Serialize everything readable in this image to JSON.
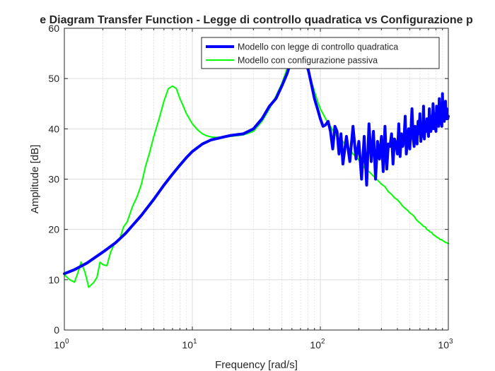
{
  "chart_data": {
    "type": "line",
    "title": "e Diagram Transfer Function - Legge di controllo quadratica vs Configurazione p",
    "xlabel": "Frequency [rad/s]",
    "ylabel": "Amplitude [dB]",
    "xscale": "log",
    "xlim": [
      1,
      1000
    ],
    "ylim": [
      0,
      60
    ],
    "grid": true,
    "legend_position": "top-right",
    "x_tick_labels": [
      {
        "base": "10",
        "exp": "0"
      },
      {
        "base": "10",
        "exp": "1"
      },
      {
        "base": "10",
        "exp": "2"
      },
      {
        "base": "10",
        "exp": "3"
      }
    ],
    "y_ticks": [
      0,
      10,
      20,
      30,
      40,
      50,
      60
    ],
    "series": [
      {
        "name": "Modello con legge di controllo quadratica",
        "color": "#0000ff",
        "width": 4,
        "x": [
          1.0,
          1.2,
          1.5,
          2.0,
          2.5,
          3.0,
          4.0,
          5.0,
          6.0,
          7.0,
          8.0,
          9.0,
          10.0,
          12.0,
          14.0,
          17.0,
          20.0,
          25.0,
          30.0,
          35.0,
          40.0,
          45.0,
          50.0,
          55.0,
          60.0,
          65.0,
          70.0,
          75.0,
          80.0,
          85.0,
          90.0,
          95.0,
          100.0,
          105.0,
          110.0,
          115.0,
          120.0,
          125.0,
          130.0,
          135.0,
          140.0,
          145.0,
          150.0,
          160.0,
          170.0,
          180.0,
          190.0,
          200.0,
          210.0,
          220.0,
          230.0,
          240.0,
          250.0,
          260.0,
          270.0,
          280.0,
          290.0,
          300.0,
          310.0,
          320.0,
          330.0,
          340.0,
          350.0,
          360.0,
          370.0,
          380.0,
          390.0,
          400.0,
          410.0,
          420.0,
          430.0,
          440.0,
          450.0,
          460.0,
          470.0,
          480.0,
          490.0,
          500.0,
          510.0,
          520.0,
          530.0,
          540.0,
          550.0,
          560.0,
          570.0,
          580.0,
          590.0,
          600.0,
          610.0,
          620.0,
          630.0,
          640.0,
          650.0,
          660.0,
          670.0,
          680.0,
          690.0,
          700.0,
          710.0,
          720.0,
          730.0,
          740.0,
          750.0,
          760.0,
          770.0,
          780.0,
          790.0,
          800.0,
          810.0,
          820.0,
          830.0,
          840.0,
          850.0,
          860.0,
          870.0,
          880.0,
          890.0,
          900.0,
          910.0,
          920.0,
          930.0,
          940.0,
          950.0,
          960.0,
          970.0,
          980.0,
          990.0,
          1000.0
        ],
        "y": [
          11.2,
          12.0,
          13.3,
          15.5,
          17.3,
          19.2,
          22.8,
          26.0,
          28.8,
          31.0,
          32.8,
          34.3,
          35.5,
          37.0,
          37.8,
          38.3,
          38.7,
          39.0,
          40.0,
          42.0,
          44.5,
          46.0,
          48.5,
          51.0,
          54.0,
          57.0,
          55.0,
          53.0,
          52.0,
          49.0,
          46.0,
          44.0,
          42.0,
          40.5,
          40.8,
          41.5,
          39.5,
          36.0,
          40.5,
          39.5,
          35.0,
          39.0,
          33.0,
          38.5,
          33.5,
          40.5,
          34.0,
          37.5,
          30.0,
          38.5,
          28.8,
          41.0,
          33.5,
          39.5,
          30.0,
          37.5,
          34.0,
          38.5,
          31.5,
          40.5,
          32.0,
          37.0,
          36.5,
          39.0,
          33.0,
          38.0,
          37.0,
          35.0,
          41.0,
          34.5,
          39.0,
          36.5,
          37.5,
          42.5,
          35.0,
          38.0,
          40.0,
          36.0,
          39.5,
          44.0,
          38.5,
          36.5,
          40.5,
          38.0,
          37.0,
          41.5,
          39.0,
          43.0,
          37.5,
          40.0,
          38.5,
          44.5,
          38.0,
          41.0,
          39.5,
          42.0,
          40.5,
          38.5,
          44.0,
          41.0,
          39.5,
          42.5,
          40.0,
          45.0,
          41.5,
          40.0,
          43.0,
          39.5,
          44.5,
          41.0,
          42.5,
          40.5,
          46.0,
          42.0,
          41.0,
          43.5,
          40.5,
          47.0,
          42.0,
          44.0,
          41.5,
          43.0,
          45.5,
          42.0,
          44.0,
          43.0,
          42.0,
          42.5
        ]
      },
      {
        "name": "Modello con configurazione passiva",
        "color": "#00ff00",
        "width": 2,
        "x": [
          1.0,
          1.1,
          1.2,
          1.3,
          1.35,
          1.45,
          1.55,
          1.7,
          1.8,
          1.9,
          2.0,
          2.15,
          2.3,
          2.5,
          2.7,
          2.9,
          3.1,
          3.4,
          3.7,
          4.0,
          4.3,
          4.6,
          5.0,
          5.5,
          6.0,
          6.5,
          7.0,
          7.5,
          8.0,
          8.5,
          9.0,
          10.0,
          11.0,
          12.0,
          13.0,
          14.0,
          15.0,
          17.0,
          20.0,
          25.0,
          30.0,
          35.0,
          40.0,
          45.0,
          50.0,
          55.0,
          60.0,
          65.0,
          70.0,
          75.0,
          80.0,
          85.0,
          90.0,
          95.0,
          100.0,
          110.0,
          120.0,
          130.0,
          140.0,
          150.0,
          160.0,
          170.0,
          180.0,
          190.0,
          200.0,
          220.0,
          240.0,
          260.0,
          280.0,
          300.0,
          320.0,
          340.0,
          360.0,
          380.0,
          400.0,
          420.0,
          440.0,
          460.0,
          480.0,
          500.0,
          520.0,
          540.0,
          560.0,
          580.0,
          600.0,
          620.0,
          640.0,
          660.0,
          680.0,
          700.0,
          720.0,
          740.0,
          760.0,
          780.0,
          800.0,
          820.0,
          840.0,
          860.0,
          880.0,
          900.0,
          920.0,
          940.0,
          960.0,
          980.0,
          1000.0
        ],
        "y": [
          11.0,
          10.0,
          9.5,
          12.0,
          13.5,
          11.5,
          8.5,
          9.5,
          10.5,
          13.5,
          13.0,
          12.8,
          15.5,
          17.5,
          18.0,
          20.5,
          21.5,
          24.5,
          26.5,
          29.0,
          32.5,
          35.0,
          38.5,
          42.0,
          45.5,
          48.0,
          48.5,
          48.0,
          46.0,
          44.5,
          43.0,
          41.0,
          39.8,
          39.0,
          38.6,
          38.4,
          38.3,
          38.3,
          38.5,
          38.8,
          39.5,
          41.5,
          44.0,
          46.5,
          49.0,
          52.0,
          55.0,
          58.0,
          56.0,
          53.0,
          51.5,
          49.5,
          47.5,
          45.5,
          44.0,
          42.0,
          40.5,
          39.0,
          38.0,
          37.5,
          36.5,
          36.0,
          35.0,
          34.5,
          33.8,
          32.3,
          31.5,
          30.6,
          29.8,
          29.0,
          28.5,
          27.5,
          27.0,
          26.3,
          25.9,
          25.3,
          24.6,
          24.2,
          23.8,
          23.3,
          23.0,
          22.6,
          22.0,
          21.6,
          21.3,
          21.0,
          20.6,
          20.5,
          20.0,
          19.8,
          19.5,
          19.4,
          19.0,
          18.8,
          18.6,
          18.4,
          18.3,
          18.0,
          18.0,
          17.8,
          17.7,
          17.5,
          17.4,
          17.3,
          17.2
        ]
      }
    ]
  }
}
